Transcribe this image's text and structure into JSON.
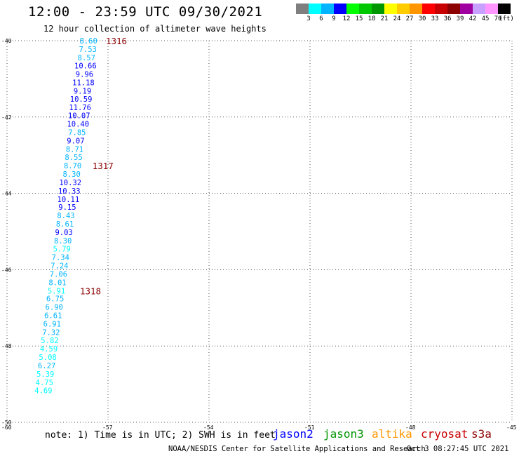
{
  "header": {
    "title": "12:00 - 23:59 UTC 09/30/2021",
    "subtitle": "12 hour collection of altimeter wave heights"
  },
  "colorbar": {
    "colors": [
      "#7f7f7f",
      "#00ffff",
      "#00b4ff",
      "#0000ff",
      "#00ff00",
      "#00c800",
      "#009600",
      "#ffff00",
      "#ffcc00",
      "#ff9600",
      "#ff0000",
      "#c80000",
      "#8c0000",
      "#a000a0",
      "#c8a0ff",
      "#ff96ff",
      "#000000"
    ],
    "labels": [
      "3",
      "6",
      "9",
      "12",
      "15",
      "18",
      "21",
      "24",
      "27",
      "30",
      "33",
      "36",
      "39",
      "42",
      "45",
      "70",
      "(ft)"
    ]
  },
  "chart_data": {
    "type": "scatter",
    "title": "12:00 - 23:59 UTC 09/30/2021",
    "subtitle": "12 hour collection of altimeter wave heights",
    "xlabel": "",
    "ylabel": "",
    "xlim": [
      -60,
      -45
    ],
    "ylim": [
      -50,
      -40
    ],
    "x_ticks": [
      -60,
      -57,
      -54,
      -51,
      -48,
      -45
    ],
    "y_ticks": [
      -40,
      -42,
      -44,
      -46,
      -48,
      -50
    ],
    "x_tick_labels": [
      "-60",
      "-57",
      "-54",
      "-51",
      "-48",
      "-45"
    ],
    "y_tick_labels": [
      "-40",
      "-42",
      "-44",
      "-46",
      "-48",
      "-50"
    ],
    "grid": true,
    "units": "ft",
    "points": [
      {
        "x": -57.58,
        "y": -40.0,
        "v": "8.60",
        "c": "#00b4ff"
      },
      {
        "x": -57.6,
        "y": -40.22,
        "v": "7.53",
        "c": "#00b4ff"
      },
      {
        "x": -57.64,
        "y": -40.44,
        "v": "8.57",
        "c": "#00b4ff"
      },
      {
        "x": -57.67,
        "y": -40.65,
        "v": "10.66",
        "c": "#0000ff"
      },
      {
        "x": -57.7,
        "y": -40.87,
        "v": "9.96",
        "c": "#0000ff"
      },
      {
        "x": -57.73,
        "y": -41.09,
        "v": "11.18",
        "c": "#0000ff"
      },
      {
        "x": -57.76,
        "y": -41.31,
        "v": "9.19",
        "c": "#0000ff"
      },
      {
        "x": -57.8,
        "y": -41.53,
        "v": "10.59",
        "c": "#0000ff"
      },
      {
        "x": -57.83,
        "y": -41.75,
        "v": "11.76",
        "c": "#0000ff"
      },
      {
        "x": -57.86,
        "y": -41.96,
        "v": "10.07",
        "c": "#0000ff"
      },
      {
        "x": -57.89,
        "y": -42.18,
        "v": "10.40",
        "c": "#0000ff"
      },
      {
        "x": -57.92,
        "y": -42.4,
        "v": "7.85",
        "c": "#00b4ff"
      },
      {
        "x": -57.96,
        "y": -42.62,
        "v": "9.07",
        "c": "#0000ff"
      },
      {
        "x": -57.99,
        "y": -42.84,
        "v": "8.71",
        "c": "#00b4ff"
      },
      {
        "x": -58.02,
        "y": -43.05,
        "v": "8.55",
        "c": "#00b4ff"
      },
      {
        "x": -58.05,
        "y": -43.27,
        "v": "8.70",
        "c": "#00b4ff"
      },
      {
        "x": -58.08,
        "y": -43.49,
        "v": "8.30",
        "c": "#00b4ff"
      },
      {
        "x": -58.12,
        "y": -43.71,
        "v": "10.32",
        "c": "#0000ff"
      },
      {
        "x": -58.15,
        "y": -43.93,
        "v": "10.33",
        "c": "#0000ff"
      },
      {
        "x": -58.18,
        "y": -44.15,
        "v": "10.11",
        "c": "#0000ff"
      },
      {
        "x": -58.21,
        "y": -44.36,
        "v": "9.15",
        "c": "#0000ff"
      },
      {
        "x": -58.25,
        "y": -44.58,
        "v": "8.43",
        "c": "#00b4ff"
      },
      {
        "x": -58.28,
        "y": -44.8,
        "v": "8.61",
        "c": "#00b4ff"
      },
      {
        "x": -58.31,
        "y": -45.02,
        "v": "9.03",
        "c": "#0000ff"
      },
      {
        "x": -58.34,
        "y": -45.24,
        "v": "8.30",
        "c": "#00b4ff"
      },
      {
        "x": -58.37,
        "y": -45.45,
        "v": "5.79",
        "c": "#00ffff"
      },
      {
        "x": -58.41,
        "y": -45.67,
        "v": "7.34",
        "c": "#00b4ff"
      },
      {
        "x": -58.44,
        "y": -45.89,
        "v": "7.24",
        "c": "#00b4ff"
      },
      {
        "x": -58.47,
        "y": -46.11,
        "v": "7.06",
        "c": "#00b4ff"
      },
      {
        "x": -58.5,
        "y": -46.33,
        "v": "8.01",
        "c": "#00b4ff"
      },
      {
        "x": -58.53,
        "y": -46.55,
        "v": "5.91",
        "c": "#00ffff"
      },
      {
        "x": -58.57,
        "y": -46.76,
        "v": "6.75",
        "c": "#00b4ff"
      },
      {
        "x": -58.6,
        "y": -46.98,
        "v": "6.90",
        "c": "#00b4ff"
      },
      {
        "x": -58.63,
        "y": -47.2,
        "v": "6.61",
        "c": "#00b4ff"
      },
      {
        "x": -58.66,
        "y": -47.42,
        "v": "6.91",
        "c": "#00b4ff"
      },
      {
        "x": -58.69,
        "y": -47.64,
        "v": "7.32",
        "c": "#00b4ff"
      },
      {
        "x": -58.73,
        "y": -47.85,
        "v": "5.82",
        "c": "#00ffff"
      },
      {
        "x": -58.76,
        "y": -48.07,
        "v": "4.59",
        "c": "#00ffff"
      },
      {
        "x": -58.79,
        "y": -48.29,
        "v": "5.08",
        "c": "#00ffff"
      },
      {
        "x": -58.82,
        "y": -48.51,
        "v": "6.27",
        "c": "#00b4ff"
      },
      {
        "x": -58.86,
        "y": -48.73,
        "v": "5.39",
        "c": "#00ffff"
      },
      {
        "x": -58.89,
        "y": -48.95,
        "v": "4.75",
        "c": "#00ffff"
      },
      {
        "x": -58.92,
        "y": -49.16,
        "v": "4.69",
        "c": "#00ffff"
      }
    ],
    "pass_labels": [
      {
        "x": -56.75,
        "y": -40.0,
        "text": "1316",
        "c": "#8c0000"
      },
      {
        "x": -57.15,
        "y": -43.27,
        "text": "1317",
        "c": "#8c0000"
      },
      {
        "x": -57.52,
        "y": -46.55,
        "text": "1318",
        "c": "#8c0000"
      }
    ]
  },
  "footer": {
    "note": "note: 1) Time is in UTC; 2) SWH is in feet",
    "satellites": [
      {
        "name": "jason2",
        "color": "#0000ff"
      },
      {
        "name": "jason3",
        "color": "#009600"
      },
      {
        "name": "altika",
        "color": "#ff9600"
      },
      {
        "name": "cryosat",
        "color": "#c80000"
      },
      {
        "name": "s3a",
        "color": "#8c0000"
      }
    ],
    "credit": "NOAA/NESDIS Center for Satellite Applications and Research",
    "generated": "Oct  3 08:27:45 UTC 2021"
  }
}
